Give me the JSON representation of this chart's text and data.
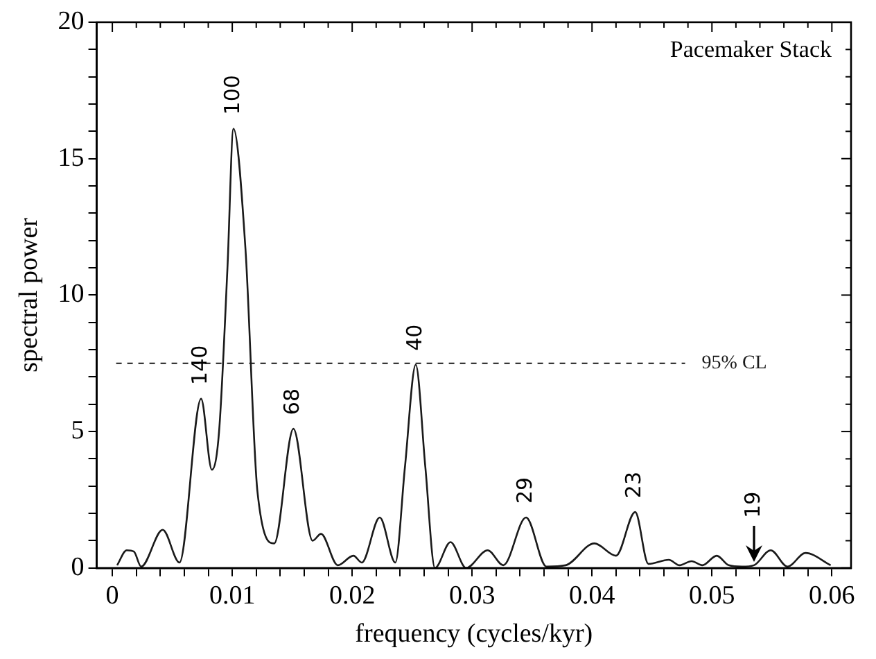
{
  "chart_data": {
    "type": "line",
    "xlabel": "frequency (cycles/kyr)",
    "ylabel": "spectral power",
    "xlim": [
      -0.0013,
      0.0616
    ],
    "ylim": [
      0,
      20
    ],
    "xticks": [
      0,
      {
        "value": 0.002,
        "label": null
      },
      {
        "value": 0.004,
        "label": null
      },
      {
        "value": 0.006,
        "label": null
      },
      {
        "value": 0.008,
        "label": null
      },
      0.01,
      {
        "value": 0.012,
        "label": null
      },
      {
        "value": 0.014,
        "label": null
      },
      {
        "value": 0.016,
        "label": null
      },
      {
        "value": 0.018,
        "label": null
      },
      0.02,
      {
        "value": 0.022,
        "label": null
      },
      {
        "value": 0.024,
        "label": null
      },
      {
        "value": 0.026,
        "label": null
      },
      {
        "value": 0.028,
        "label": null
      },
      0.03,
      {
        "value": 0.032,
        "label": null
      },
      {
        "value": 0.034,
        "label": null
      },
      {
        "value": 0.036,
        "label": null
      },
      {
        "value": 0.038,
        "label": null
      },
      0.04,
      {
        "value": 0.042,
        "label": null
      },
      {
        "value": 0.044,
        "label": null
      },
      {
        "value": 0.046,
        "label": null
      },
      {
        "value": 0.048,
        "label": null
      },
      0.05,
      {
        "value": 0.052,
        "label": null
      },
      {
        "value": 0.054,
        "label": null
      },
      {
        "value": 0.056,
        "label": null
      },
      {
        "value": 0.058,
        "label": null
      },
      0.06
    ],
    "yticks": [
      0,
      {
        "value": 1,
        "label": null
      },
      {
        "value": 2,
        "label": null
      },
      {
        "value": 3,
        "label": null
      },
      {
        "value": 4,
        "label": null
      },
      5,
      {
        "value": 6,
        "label": null
      },
      {
        "value": 7,
        "label": null
      },
      {
        "value": 8,
        "label": null
      },
      {
        "value": 9,
        "label": null
      },
      10,
      {
        "value": 11,
        "label": null
      },
      {
        "value": 12,
        "label": null
      },
      {
        "value": 13,
        "label": null
      },
      {
        "value": 14,
        "label": null
      },
      15,
      {
        "value": 16,
        "label": null
      },
      {
        "value": 17,
        "label": null
      },
      {
        "value": 18,
        "label": null
      },
      {
        "value": 19,
        "label": null
      },
      20
    ],
    "grid": false,
    "legend": false,
    "marker": "none",
    "line_style": "solid",
    "series": [
      {
        "color": "#1a1a1a",
        "x": [
          0.0004,
          0.0012,
          0.0018,
          0.0024,
          0.0042,
          0.0056,
          0.0074,
          0.0083,
          0.0089,
          0.0096,
          0.0101,
          0.0111,
          0.0121,
          0.0135,
          0.0151,
          0.0167,
          0.0174,
          0.0188,
          0.0201,
          0.0208,
          0.0223,
          0.0236,
          0.0244,
          0.0253,
          0.0261,
          0.0269,
          0.0282,
          0.0295,
          0.0313,
          0.0326,
          0.0345,
          0.0362,
          0.0378,
          0.0402,
          0.042,
          0.0436,
          0.0447,
          0.0464,
          0.0473,
          0.0483,
          0.0492,
          0.0504,
          0.0514,
          0.0525,
          0.0535,
          0.0549,
          0.0563,
          0.0578,
          0.0599
        ],
        "values": [
          0.1,
          0.65,
          0.6,
          0.05,
          1.4,
          0.2,
          6.2,
          3.6,
          5.0,
          11,
          16.1,
          11.7,
          2.8,
          0.9,
          5.1,
          1.0,
          1.25,
          0.1,
          0.45,
          0.2,
          1.85,
          0.2,
          3.7,
          7.45,
          3.7,
          0,
          0.95,
          0,
          0.65,
          0.1,
          1.85,
          0.05,
          0.1,
          0.9,
          0.45,
          2.05,
          0.15,
          0.3,
          0.1,
          0.25,
          0.1,
          0.45,
          0.1,
          0.05,
          0.1,
          0.65,
          0.05,
          0.55,
          0.1
        ]
      }
    ],
    "ref_lines": [
      {
        "axis": "y",
        "value": 7.5,
        "label": "95% CL",
        "line_style": "dashed",
        "color": "#1a1a1a"
      }
    ],
    "annotations": [
      "Pacemaker Stack",
      {
        "text": "100",
        "x": 0.0101,
        "y": 16.1
      },
      {
        "text": "140",
        "x": 0.0074,
        "y": 6.2
      },
      {
        "text": "68",
        "x": 0.0151,
        "y": 5.1
      },
      {
        "text": "40",
        "x": 0.0253,
        "y": 7.45
      },
      {
        "text": "29",
        "x": 0.0345,
        "y": 1.85
      },
      {
        "text": "23",
        "x": 0.0436,
        "y": 2.05
      },
      {
        "text": "19",
        "x": 0.0535,
        "y": 0.1
      }
    ]
  }
}
